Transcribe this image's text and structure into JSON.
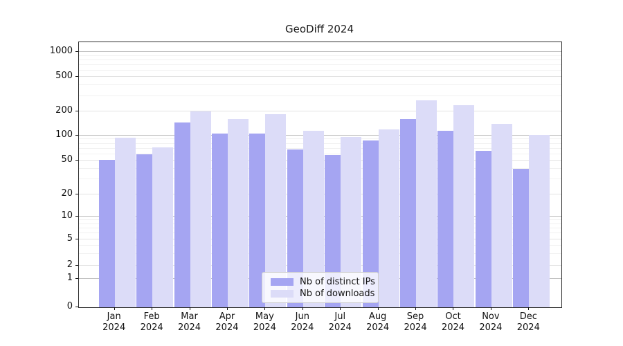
{
  "title": "GeoDiff 2024",
  "colors": {
    "distinct_ips": "#a5a5f2",
    "downloads": "#dcdcf8",
    "grid_major": "#c0c0c0",
    "grid_sub": "#e2e2e2",
    "grid_minor": "#f1f1f1",
    "axis": "#2e2e2e"
  },
  "legend": {
    "items": [
      {
        "label": "Nb of distinct IPs",
        "series": "distinct_ips"
      },
      {
        "label": "Nb of downloads",
        "series": "downloads"
      }
    ]
  },
  "chart_data": {
    "type": "bar",
    "title": "GeoDiff 2024",
    "xlabel": "",
    "ylabel": "",
    "categories": [
      "Jan 2024",
      "Feb 2024",
      "Mar 2024",
      "Apr 2024",
      "May 2024",
      "Jun 2024",
      "Jul 2024",
      "Aug 2024",
      "Sep 2024",
      "Oct 2024",
      "Nov 2024",
      "Dec 2024"
    ],
    "series": [
      {
        "name": "Nb of distinct IPs",
        "values": [
          51,
          60,
          145,
          105,
          105,
          68,
          58,
          87,
          160,
          115,
          65,
          40
        ]
      },
      {
        "name": "Nb of downloads",
        "values": [
          95,
          72,
          200,
          160,
          185,
          115,
          96,
          120,
          270,
          235,
          140,
          101
        ]
      }
    ],
    "yscale": "symlog",
    "yticks": [
      0,
      1,
      2,
      5,
      10,
      20,
      50,
      100,
      200,
      500,
      1000
    ],
    "ylim": [
      0,
      1400
    ],
    "grid": true,
    "legend_position": "lower center"
  }
}
